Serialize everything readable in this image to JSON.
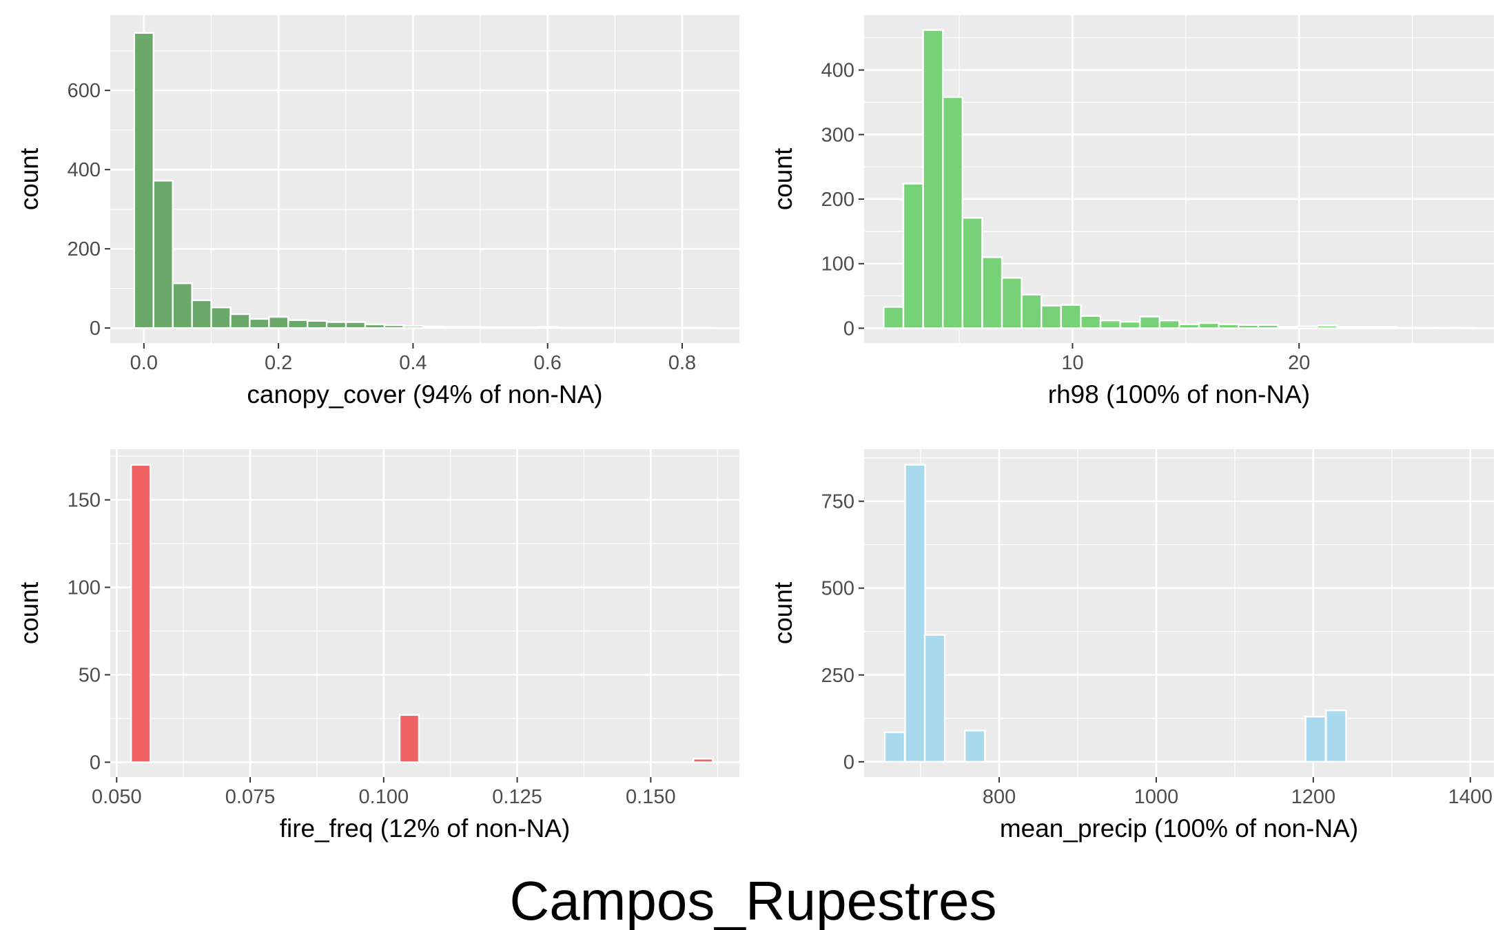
{
  "title": "Campos_Rupestres",
  "chart_data": [
    {
      "type": "bar",
      "xlabel": "canopy_cover (94% of non-NA)",
      "ylabel": "count",
      "fill": "#6aa96a",
      "xlim": [
        -0.05,
        0.885
      ],
      "ylim": [
        -38,
        790
      ],
      "xticks": [
        0.0,
        0.2,
        0.4,
        0.6,
        0.8
      ],
      "xtick_labels": [
        "0.0",
        "0.2",
        "0.4",
        "0.6",
        "0.8"
      ],
      "yticks": [
        0,
        200,
        400,
        600
      ],
      "ytick_labels": [
        "0",
        "200",
        "400",
        "600"
      ],
      "binwidth": 0.0286,
      "x": [
        0.0,
        0.0286,
        0.0572,
        0.0858,
        0.1144,
        0.143,
        0.1716,
        0.2002,
        0.2288,
        0.2574,
        0.286,
        0.3146,
        0.3432,
        0.3718,
        0.4004,
        0.429,
        0.4576,
        0.4862,
        0.5148,
        0.5434,
        0.572,
        0.6006,
        0.6292,
        0.6578,
        0.6864,
        0.715,
        0.7436,
        0.7722,
        0.8008,
        0.8294
      ],
      "values": [
        745,
        372,
        113,
        70,
        52,
        35,
        23,
        28,
        20,
        18,
        15,
        15,
        9,
        7,
        5,
        4,
        3,
        3,
        2,
        2,
        2,
        3,
        1,
        1,
        1,
        1,
        1,
        1,
        1,
        1
      ]
    },
    {
      "type": "bar",
      "xlabel": "rh98 (100% of non-NA)",
      "ylabel": "count",
      "fill": "#77d177",
      "xlim": [
        0.8,
        28.6
      ],
      "ylim": [
        -23,
        485
      ],
      "xticks": [
        10,
        20
      ],
      "xtick_labels": [
        "10",
        "20"
      ],
      "yticks": [
        0,
        100,
        200,
        300,
        400
      ],
      "ytick_labels": [
        "0",
        "100",
        "200",
        "300",
        "400"
      ],
      "binwidth": 0.87,
      "x": [
        2.1,
        2.97,
        3.84,
        4.71,
        5.58,
        6.45,
        7.32,
        8.19,
        9.06,
        9.93,
        10.8,
        11.67,
        12.54,
        13.41,
        14.28,
        15.15,
        16.02,
        16.89,
        17.76,
        18.63,
        19.5,
        20.37,
        21.24,
        22.11,
        22.98,
        23.85,
        24.72,
        25.59,
        26.46,
        27.33
      ],
      "values": [
        33,
        224,
        462,
        358,
        171,
        110,
        78,
        52,
        35,
        36,
        19,
        12,
        10,
        18,
        12,
        6,
        8,
        6,
        5,
        5,
        2,
        3,
        4,
        2,
        2,
        2,
        1,
        1,
        1,
        1
      ]
    },
    {
      "type": "bar",
      "xlabel": "fire_freq (12% of non-NA)",
      "ylabel": "count",
      "fill": "#f06262",
      "xlim": [
        0.0488,
        0.1666
      ],
      "ylim": [
        -8.5,
        179
      ],
      "xticks": [
        0.05,
        0.075,
        0.1,
        0.125,
        0.15
      ],
      "xtick_labels": [
        "0.050",
        "0.075",
        "0.100",
        "0.125",
        "0.150"
      ],
      "yticks": [
        0,
        50,
        100,
        150
      ],
      "ytick_labels": [
        "0",
        "50",
        "100",
        "150"
      ],
      "binwidth": 0.0036,
      "x": [
        0.0545,
        0.1048,
        0.1598
      ],
      "values": [
        170,
        27,
        2
      ]
    },
    {
      "type": "bar",
      "xlabel": "mean_precip (100% of non-NA)",
      "ylabel": "count",
      "fill": "#a9d9ec",
      "xlim": [
        628,
        1430
      ],
      "ylim": [
        -44,
        900
      ],
      "xticks": [
        800,
        1000,
        1200,
        1400
      ],
      "xtick_labels": [
        "800",
        "1000",
        "1200",
        "1400"
      ],
      "yticks": [
        0,
        250,
        500,
        750
      ],
      "ytick_labels": [
        "0",
        "250",
        "500",
        "750"
      ],
      "binwidth": 25.5,
      "x": [
        667,
        693,
        718,
        769,
        1203,
        1229
      ],
      "values": [
        85,
        855,
        365,
        90,
        130,
        148
      ]
    }
  ]
}
